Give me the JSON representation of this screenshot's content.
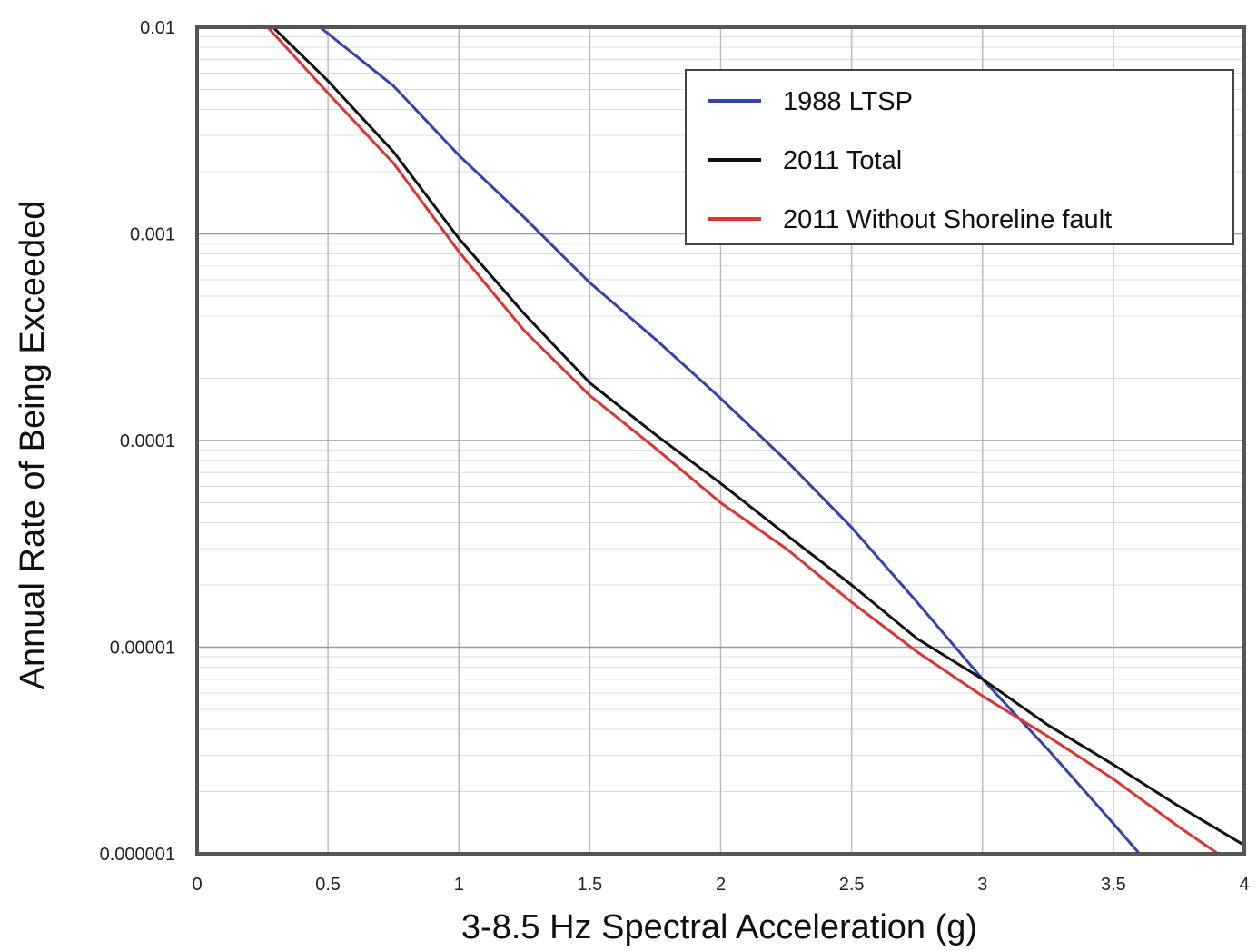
{
  "chart_data": {
    "type": "line",
    "title": "",
    "xlabel": "3-8.5 Hz Spectral Acceleration (g)",
    "ylabel": "Annual Rate of Being Exceeded",
    "xlim": [
      0,
      4
    ],
    "ylim": [
      1e-06,
      0.01
    ],
    "yscale": "log",
    "grid": true,
    "legend_position": "top-right",
    "x_ticks": [
      0,
      0.5,
      1,
      1.5,
      2,
      2.5,
      3,
      3.5,
      4
    ],
    "x_tick_labels": [
      "0",
      "0.5",
      "1",
      "1.5",
      "2",
      "2.5",
      "3",
      "3.5",
      "4"
    ],
    "y_ticks": [
      1e-06,
      1e-05,
      0.0001,
      0.001,
      0.01
    ],
    "y_tick_labels": [
      "0.000001",
      "0.00001",
      "0.0001",
      "0.001",
      "0.01"
    ],
    "series": [
      {
        "name": "1988 LTSP",
        "color": "#3344aa",
        "x": [
          0.47,
          0.75,
          1.0,
          1.25,
          1.5,
          1.75,
          2.0,
          2.25,
          2.5,
          2.75,
          3.0,
          3.25,
          3.5,
          3.6
        ],
        "y": [
          0.01,
          0.0052,
          0.0024,
          0.0012,
          0.00058,
          0.00031,
          0.00016,
          8e-05,
          3.8e-05,
          1.65e-05,
          7e-06,
          3.2e-06,
          1.4e-06,
          1e-06
        ]
      },
      {
        "name": "2011 Total",
        "color": "#111111",
        "x": [
          0.29,
          0.5,
          0.75,
          1.0,
          1.25,
          1.5,
          1.75,
          2.0,
          2.25,
          2.5,
          2.75,
          3.0,
          3.25,
          3.5,
          3.75,
          4.0
        ],
        "y": [
          0.01,
          0.0055,
          0.0025,
          0.00095,
          0.00041,
          0.00019,
          0.000107,
          6.2e-05,
          3.5e-05,
          2e-05,
          1.1e-05,
          7e-06,
          4.2e-06,
          2.7e-06,
          1.7e-06,
          1.1e-06
        ]
      },
      {
        "name": "2011 Without Shoreline fault",
        "color": "#dd3333",
        "x": [
          0.27,
          0.5,
          0.75,
          1.0,
          1.25,
          1.5,
          1.75,
          2.0,
          2.25,
          2.5,
          2.75,
          3.0,
          3.25,
          3.5,
          3.75,
          3.9
        ],
        "y": [
          0.01,
          0.0048,
          0.0022,
          0.00082,
          0.00034,
          0.000165,
          9.2e-05,
          5e-05,
          3e-05,
          1.65e-05,
          9.5e-06,
          5.8e-06,
          3.7e-06,
          2.3e-06,
          1.35e-06,
          1e-06
        ]
      }
    ]
  }
}
